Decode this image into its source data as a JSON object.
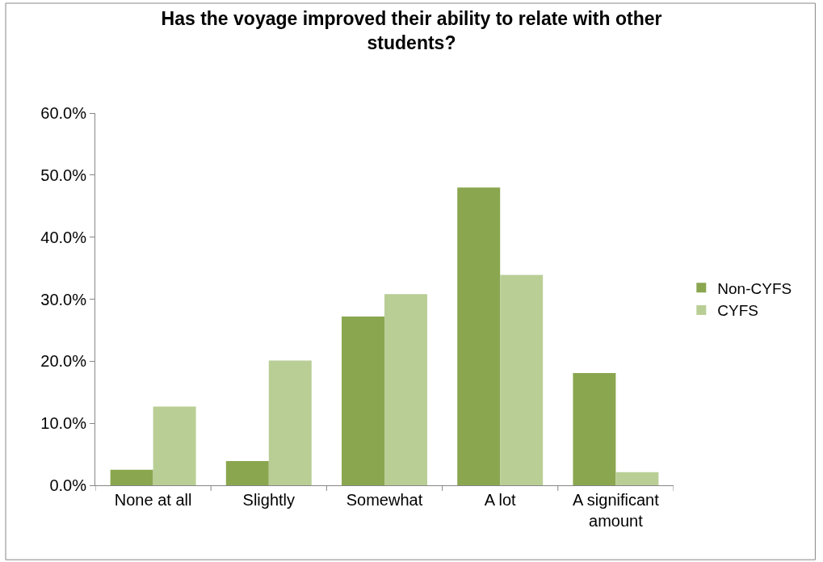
{
  "chart_data": {
    "type": "bar",
    "title": "Has the voyage improved their ability to relate with other students?",
    "categories": [
      "None at all",
      "Slightly",
      "Somewhat",
      "A lot",
      "A significant amount"
    ],
    "series": [
      {
        "name": "Non-CYFS",
        "color": "#8aa64f",
        "values": [
          2.5,
          3.9,
          27.2,
          48.0,
          18.1
        ]
      },
      {
        "name": "CYFS",
        "color": "#b9ce95",
        "values": [
          12.7,
          20.1,
          30.8,
          33.9,
          2.1
        ]
      }
    ],
    "ylim": [
      0,
      60
    ],
    "yticks": [
      {
        "value": 0,
        "label": "0.0%"
      },
      {
        "value": 10,
        "label": "10.0%"
      },
      {
        "value": 20,
        "label": "20.0%"
      },
      {
        "value": 30,
        "label": "30.0%"
      },
      {
        "value": 40,
        "label": "40.0%"
      },
      {
        "value": 50,
        "label": "50.0%"
      },
      {
        "value": 60,
        "label": "60.0%"
      }
    ],
    "legend": "right"
  }
}
